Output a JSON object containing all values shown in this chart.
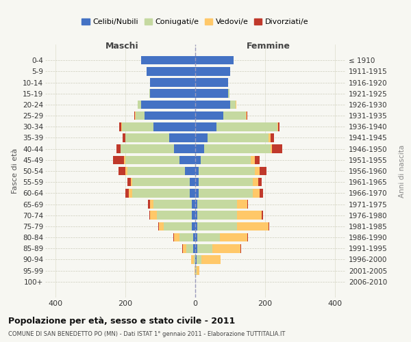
{
  "age_groups": [
    "0-4",
    "5-9",
    "10-14",
    "15-19",
    "20-24",
    "25-29",
    "30-34",
    "35-39",
    "40-44",
    "45-49",
    "50-54",
    "55-59",
    "60-64",
    "65-69",
    "70-74",
    "75-79",
    "80-84",
    "85-89",
    "90-94",
    "95-99",
    "100+"
  ],
  "birth_years": [
    "2006-2010",
    "2001-2005",
    "1996-2000",
    "1991-1995",
    "1986-1990",
    "1981-1985",
    "1976-1980",
    "1971-1975",
    "1966-1970",
    "1961-1965",
    "1956-1960",
    "1951-1955",
    "1946-1950",
    "1941-1945",
    "1936-1940",
    "1931-1935",
    "1926-1930",
    "1921-1925",
    "1916-1920",
    "1911-1915",
    "≤ 1910"
  ],
  "males": {
    "celibi": [
      155,
      140,
      130,
      130,
      155,
      145,
      120,
      75,
      60,
      45,
      30,
      15,
      15,
      10,
      10,
      10,
      5,
      5,
      0,
      0,
      0
    ],
    "coniugati": [
      0,
      0,
      0,
      2,
      10,
      25,
      90,
      125,
      155,
      155,
      165,
      165,
      165,
      110,
      100,
      80,
      40,
      20,
      3,
      0,
      0
    ],
    "vedovi": [
      0,
      0,
      0,
      0,
      0,
      2,
      2,
      0,
      0,
      5,
      5,
      5,
      10,
      10,
      20,
      15,
      15,
      10,
      8,
      2,
      0
    ],
    "divorziati": [
      0,
      0,
      0,
      0,
      0,
      3,
      5,
      8,
      10,
      30,
      20,
      10,
      10,
      5,
      2,
      2,
      2,
      2,
      0,
      0,
      0
    ]
  },
  "females": {
    "nubili": [
      110,
      100,
      95,
      95,
      100,
      80,
      60,
      35,
      25,
      15,
      10,
      10,
      10,
      5,
      5,
      5,
      5,
      5,
      3,
      0,
      0
    ],
    "coniugate": [
      0,
      0,
      0,
      3,
      15,
      65,
      175,
      175,
      190,
      145,
      160,
      155,
      155,
      115,
      115,
      115,
      65,
      45,
      15,
      3,
      0
    ],
    "vedove": [
      0,
      0,
      0,
      0,
      2,
      2,
      2,
      5,
      5,
      10,
      15,
      15,
      20,
      30,
      70,
      90,
      80,
      80,
      55,
      8,
      0
    ],
    "divorziate": [
      0,
      0,
      0,
      0,
      0,
      2,
      5,
      10,
      30,
      15,
      20,
      10,
      10,
      2,
      5,
      2,
      2,
      2,
      0,
      0,
      0
    ]
  },
  "colors": {
    "celibi_nubili": "#4472c4",
    "coniugati": "#c5d9a0",
    "vedovi": "#ffc869",
    "divorziati": "#c0392b"
  },
  "xlim": [
    -430,
    430
  ],
  "xticks": [
    -400,
    -200,
    0,
    200,
    400
  ],
  "xticklabels": [
    "400",
    "200",
    "0",
    "200",
    "400"
  ],
  "title": "Popolazione per età, sesso e stato civile - 2011",
  "subtitle": "COMUNE DI SAN BENEDETTO PO (MN) - Dati ISTAT 1° gennaio 2011 - Elaborazione TUTTITALIA.IT",
  "ylabel_left": "Fasce di età",
  "ylabel_right": "Anni di nascita",
  "label_maschi": "Maschi",
  "label_femmine": "Femmine",
  "legend_labels": [
    "Celibi/Nubili",
    "Coniugati/e",
    "Vedovi/e",
    "Divorziati/e"
  ],
  "background_color": "#f7f7f2"
}
